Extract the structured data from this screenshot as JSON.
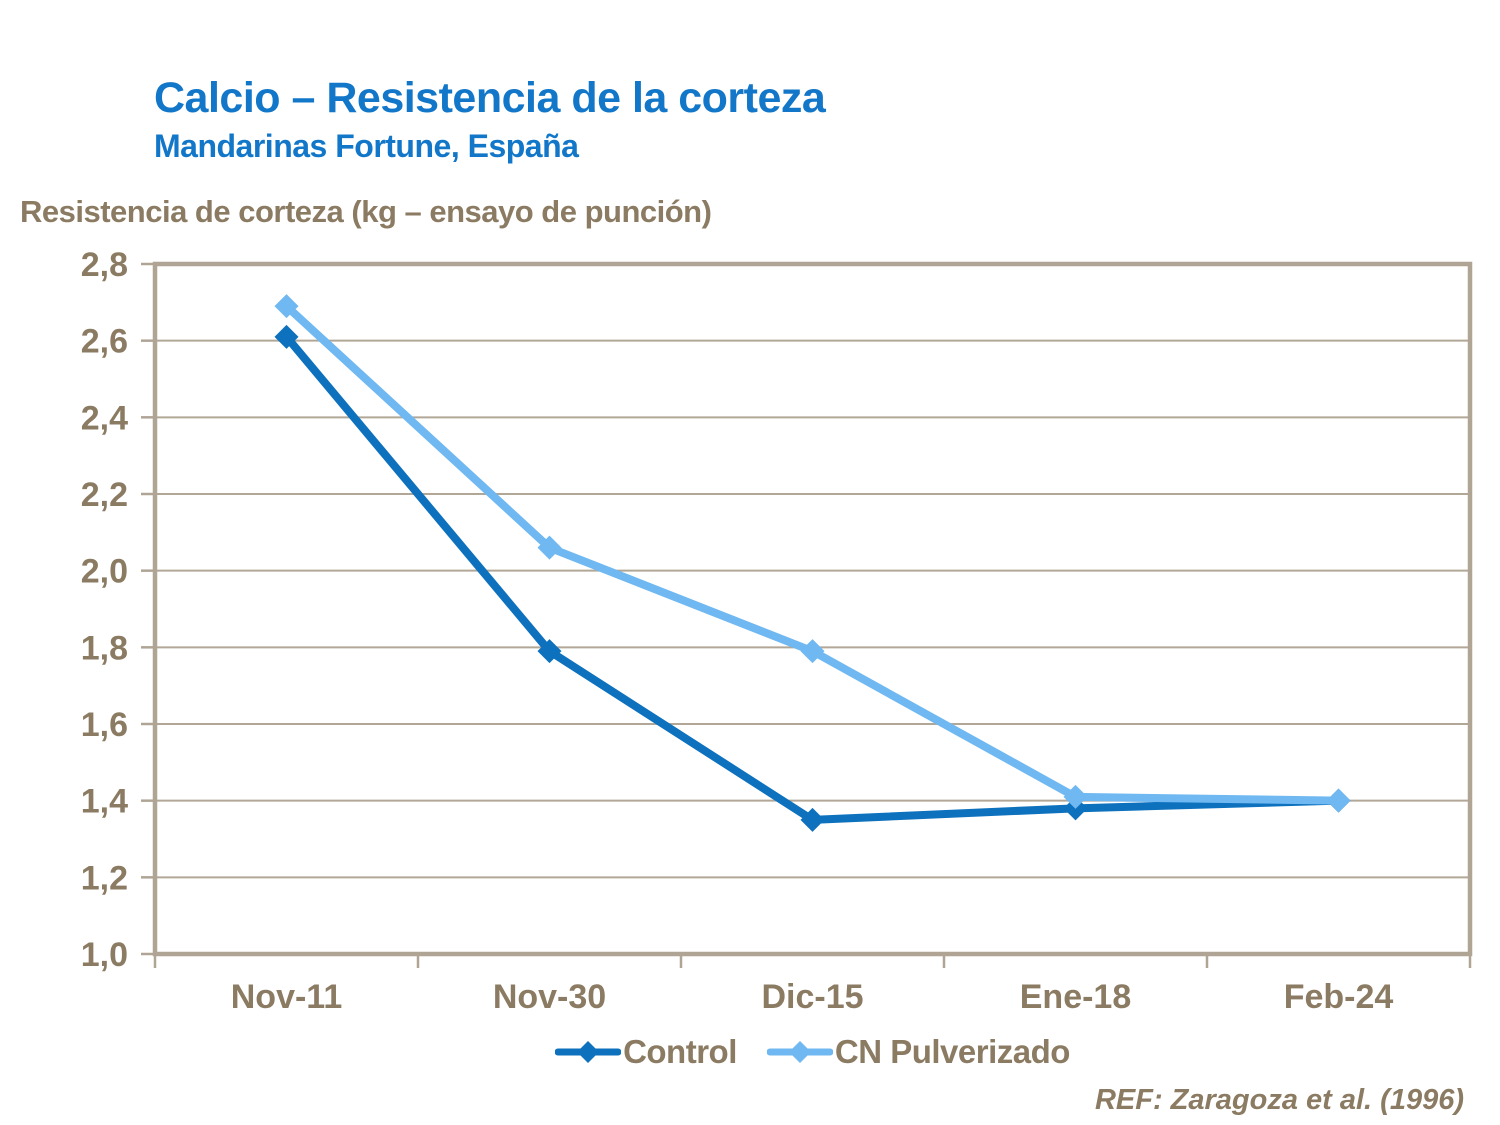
{
  "footer": {
    "ref": "REF: Zaragoza et al. (1996)"
  },
  "colors": {
    "title_blue": "#1277C8",
    "text_taupe": "#8B7B63",
    "gridline": "#B2A797",
    "frame": "#B0A595",
    "control_blue": "#0D71BE",
    "cn_light_blue": "#6FB8F1"
  },
  "chart_data": {
    "type": "line",
    "title": "Calcio – Resistencia de la corteza",
    "subtitle": "Mandarinas Fortune, España",
    "ylabel": "Resistencia de corteza (kg – ensayo de punción)",
    "xlabel": "",
    "categories": [
      "Nov-11",
      "Nov-30",
      "Dic-15",
      "Ene-18",
      "Feb-24"
    ],
    "series": [
      {
        "name": "Control",
        "color": "#0D71BE",
        "marker": "diamond",
        "values": [
          2.61,
          1.79,
          1.35,
          1.38,
          1.4
        ]
      },
      {
        "name": "CN Pulverizado",
        "color": "#6FB8F1",
        "marker": "diamond",
        "values": [
          2.69,
          2.06,
          1.79,
          1.41,
          1.4
        ]
      }
    ],
    "ylim": [
      1.0,
      2.8
    ],
    "ytick_step": 0.2,
    "ytick_labels": [
      "2,8",
      "2,6",
      "2,4",
      "2,2",
      "2,0",
      "1,8",
      "1,6",
      "1,4",
      "1,2",
      "1,0"
    ],
    "decimal_separator": ",",
    "grid": true,
    "legend_position": "bottom"
  }
}
